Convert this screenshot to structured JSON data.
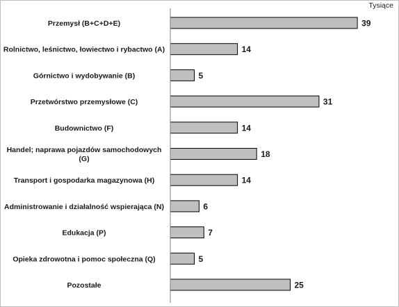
{
  "chart_data": {
    "type": "bar",
    "orientation": "horizontal",
    "unit_label": "Tysiące",
    "categories": [
      [
        "Przemysł (B+C+D+E)"
      ],
      [
        "Rolnictwo, leśnictwo, łowiectwo i rybactwo (A)"
      ],
      [
        "Górnictwo i wydobywanie (B)"
      ],
      [
        "Przetwórstwo przemysłowe (C)"
      ],
      [
        "Budownictwo (F)"
      ],
      [
        "Handel; naprawa pojazdów samochodowych",
        "(G)"
      ],
      [
        "Transport i gospodarka magazynowa (H)"
      ],
      [
        "Administrowanie i działalność wspierająca (N)"
      ],
      [
        "Edukacja (P)"
      ],
      [
        "Opieka zdrowotna i pomoc społeczna (Q)"
      ],
      [
        "Pozostałe"
      ]
    ],
    "values": [
      39,
      14,
      5,
      31,
      14,
      18,
      14,
      6,
      7,
      5,
      25
    ],
    "xlim": [
      0,
      40
    ],
    "grid": false,
    "legend": "none",
    "colors": {
      "bar_fill": "#bfbfbf",
      "bar_stroke": "#000000",
      "axis": "#808080"
    }
  }
}
